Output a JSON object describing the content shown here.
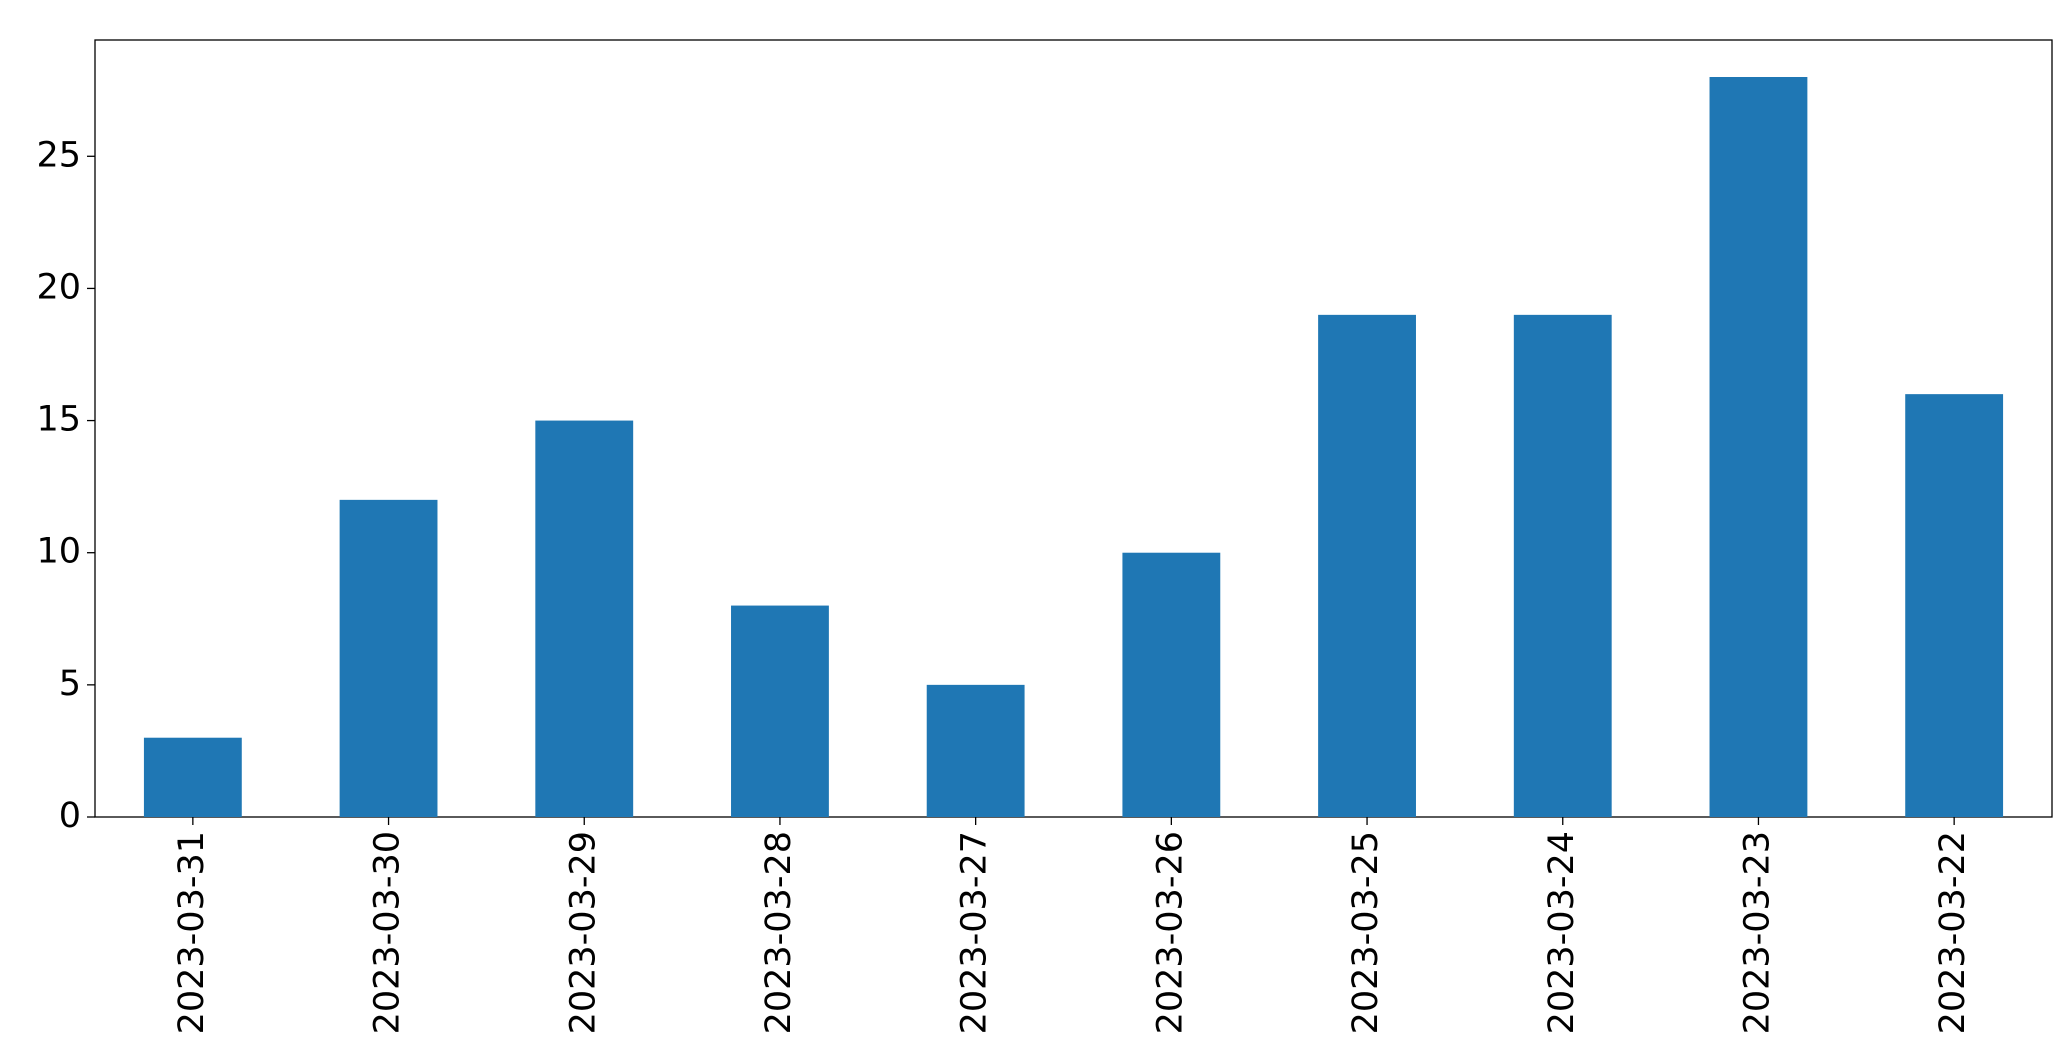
{
  "chart_data": {
    "type": "bar",
    "categories": [
      "2023-03-31",
      "2023-03-30",
      "2023-03-29",
      "2023-03-28",
      "2023-03-27",
      "2023-03-26",
      "2023-03-25",
      "2023-03-24",
      "2023-03-23",
      "2023-03-22"
    ],
    "values": [
      3,
      12,
      15,
      8,
      5,
      10,
      19,
      19,
      28,
      16
    ],
    "color": "#1f77b4",
    "ylim": [
      0,
      29.4
    ],
    "yticks": [
      0,
      5,
      10,
      15,
      20,
      25
    ],
    "grid": false
  }
}
